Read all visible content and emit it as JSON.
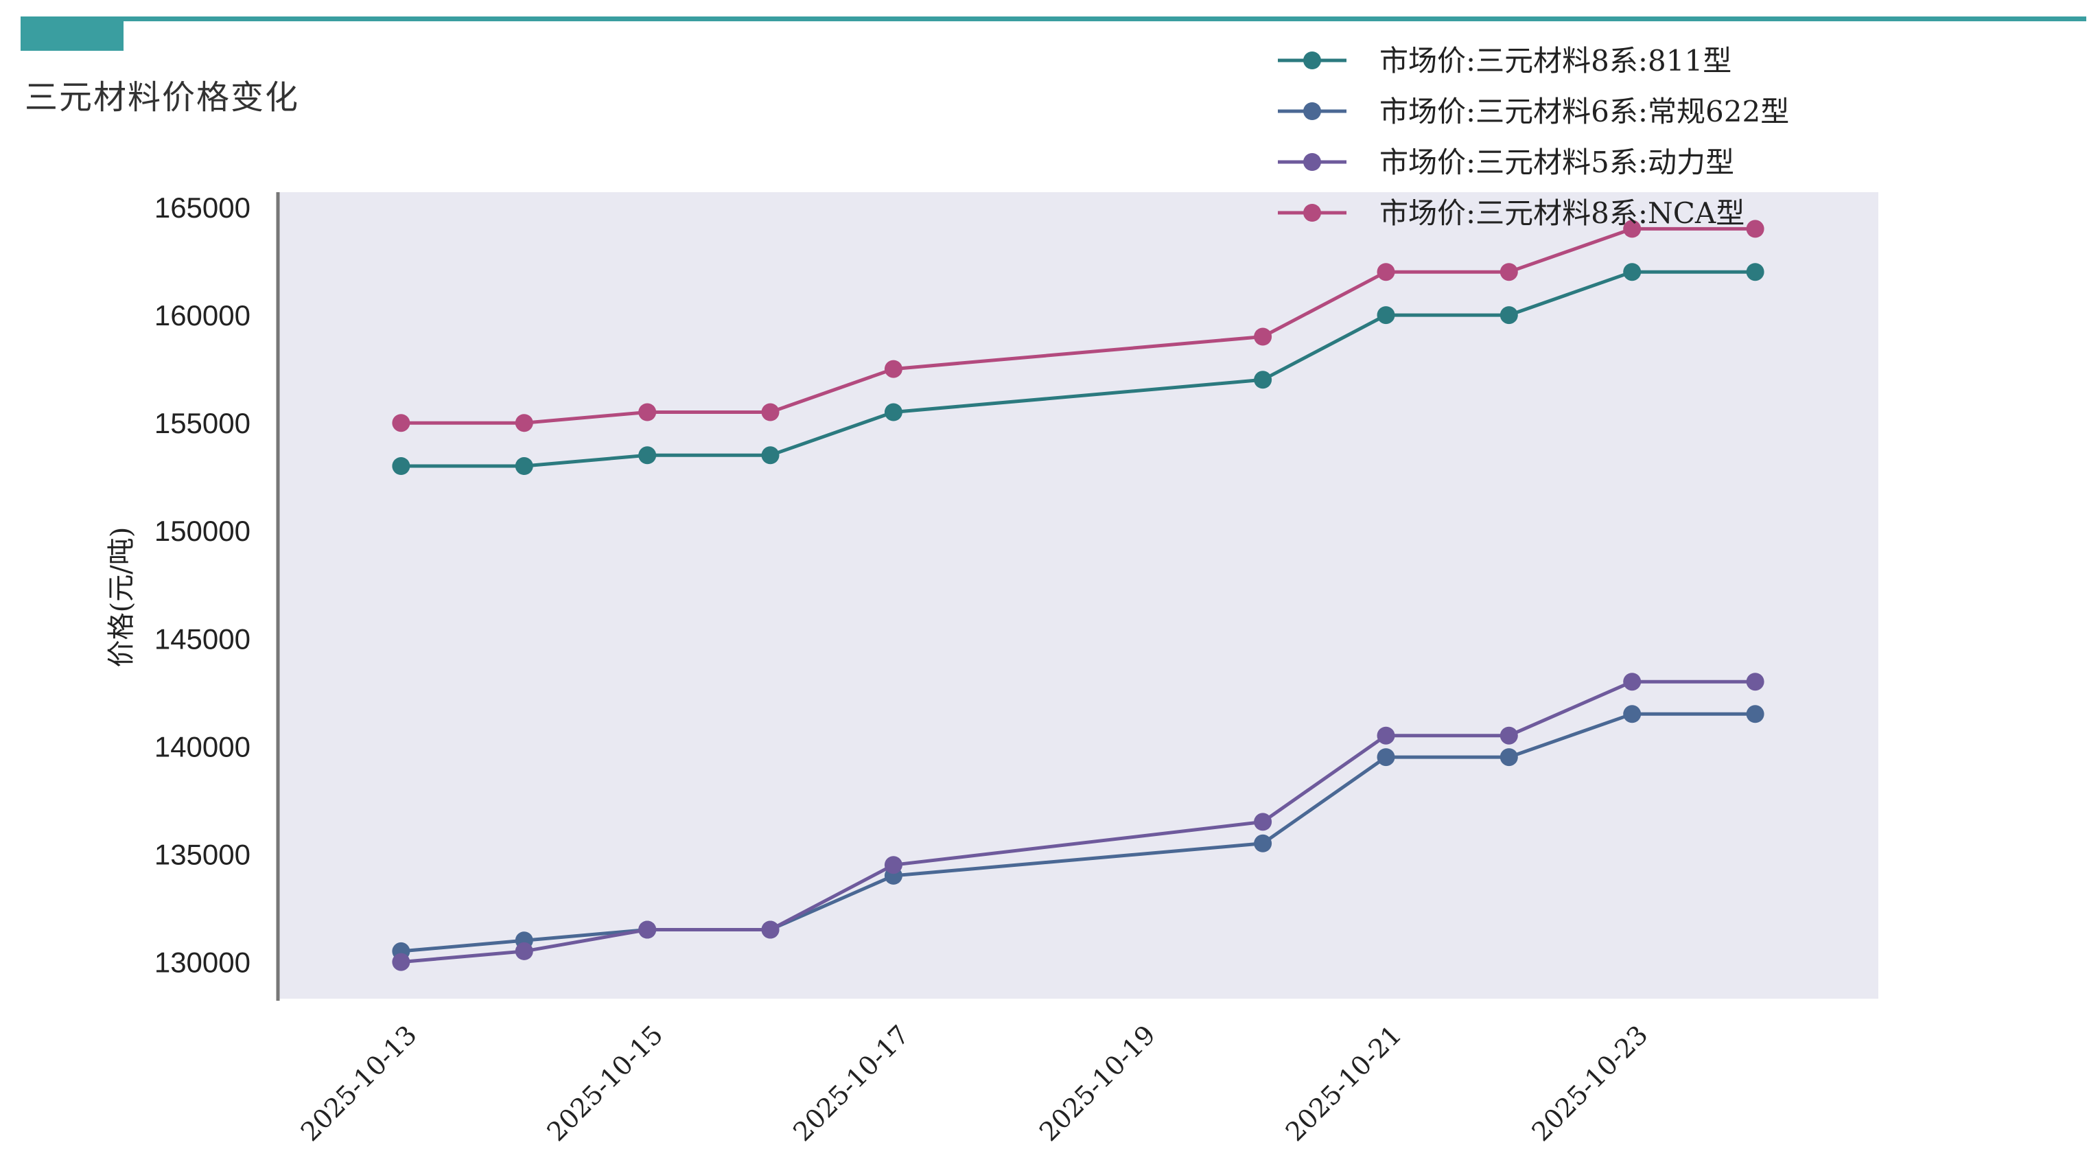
{
  "header": {
    "title": "三元材料价格变化"
  },
  "colors": {
    "accent": "#3a9ea0",
    "plot_background": "#e9e9f2"
  },
  "chart_data": {
    "type": "line",
    "title": "",
    "xlabel": "",
    "ylabel": "价格(元/吨)",
    "x": [
      "2025-10-13",
      "2025-10-14",
      "2025-10-15",
      "2025-10-16",
      "2025-10-17",
      "2025-10-20",
      "2025-10-21",
      "2025-10-22",
      "2025-10-23",
      "2025-10-24"
    ],
    "xticks": [
      "2025-10-13",
      "2025-10-15",
      "2025-10-17",
      "2025-10-19",
      "2025-10-21",
      "2025-10-23"
    ],
    "yticks": [
      130000,
      135000,
      140000,
      145000,
      150000,
      155000,
      160000,
      165000
    ],
    "ylim": [
      128300,
      165700
    ],
    "xlim": [
      "2025-10-12",
      "2025-10-25"
    ],
    "grid": false,
    "legend_position": "top-right",
    "series": [
      {
        "name": "市场价:三元材料8系:811型",
        "color": "#2b7a7f",
        "values": [
          153000,
          153000,
          153500,
          153500,
          155500,
          157000,
          160000,
          160000,
          162000,
          162000
        ]
      },
      {
        "name": "市场价:三元材料6系:常规622型",
        "color": "#4a6894",
        "values": [
          130500,
          131000,
          131500,
          131500,
          134000,
          135500,
          139500,
          139500,
          141500,
          141500
        ]
      },
      {
        "name": "市场价:三元材料5系:动力型",
        "color": "#6e5a9c",
        "values": [
          130000,
          130500,
          131500,
          131500,
          134500,
          136500,
          140500,
          140500,
          143000,
          143000
        ]
      },
      {
        "name": "市场价:三元材料8系:NCA型",
        "color": "#b34a7e",
        "values": [
          155000,
          155000,
          155500,
          155500,
          157500,
          159000,
          162000,
          162000,
          164000,
          164000
        ]
      }
    ]
  }
}
